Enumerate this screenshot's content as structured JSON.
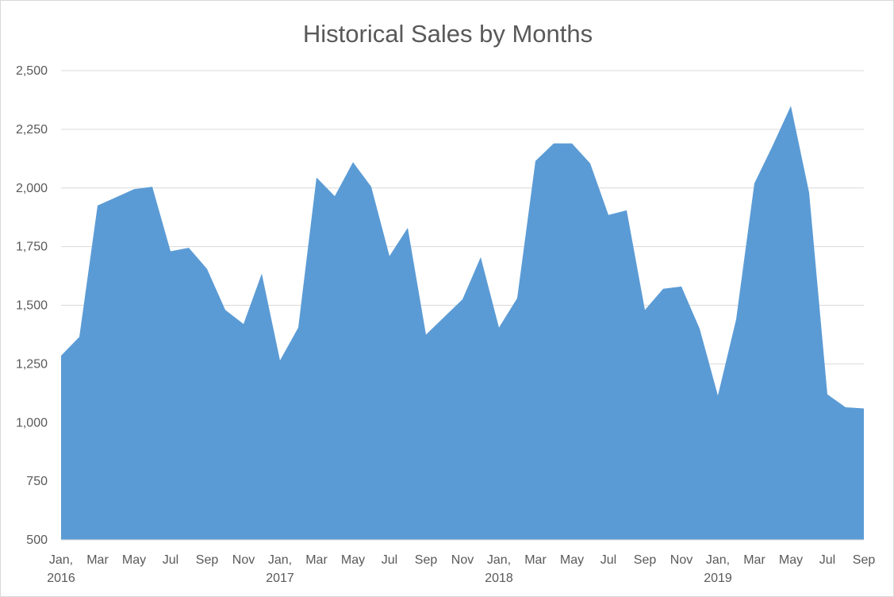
{
  "chart_data": {
    "type": "area",
    "title": "Historical Sales by Months",
    "xlabel": "",
    "ylabel": "",
    "ylim": [
      500,
      2500
    ],
    "y_ticks": [
      500,
      750,
      1000,
      1250,
      1500,
      1750,
      2000,
      2250,
      2500
    ],
    "y_tick_labels": [
      "500",
      "750",
      "1,000",
      "1,250",
      "1,500",
      "1,750",
      "2,000",
      "2,250",
      "2,500"
    ],
    "grid": true,
    "legend": "none",
    "x": [
      "2016-01",
      "2016-02",
      "2016-03",
      "2016-04",
      "2016-05",
      "2016-06",
      "2016-07",
      "2016-08",
      "2016-09",
      "2016-10",
      "2016-11",
      "2016-12",
      "2017-01",
      "2017-02",
      "2017-03",
      "2017-04",
      "2017-05",
      "2017-06",
      "2017-07",
      "2017-08",
      "2017-09",
      "2017-10",
      "2017-11",
      "2017-12",
      "2018-01",
      "2018-02",
      "2018-03",
      "2018-04",
      "2018-05",
      "2018-06",
      "2018-07",
      "2018-08",
      "2018-09",
      "2018-10",
      "2018-11",
      "2018-12",
      "2019-01",
      "2019-02",
      "2019-03",
      "2019-04",
      "2019-05",
      "2019-06",
      "2019-07",
      "2019-08",
      "2019-09"
    ],
    "x_tick_labels": [
      {
        "line1": "Jan,",
        "line2": "2016"
      },
      {
        "line1": "Mar",
        "line2": ""
      },
      {
        "line1": "May",
        "line2": ""
      },
      {
        "line1": "Jul",
        "line2": ""
      },
      {
        "line1": "Sep",
        "line2": ""
      },
      {
        "line1": "Nov",
        "line2": ""
      },
      {
        "line1": "Jan,",
        "line2": "2017"
      },
      {
        "line1": "Mar",
        "line2": ""
      },
      {
        "line1": "May",
        "line2": ""
      },
      {
        "line1": "Jul",
        "line2": ""
      },
      {
        "line1": "Sep",
        "line2": ""
      },
      {
        "line1": "Nov",
        "line2": ""
      },
      {
        "line1": "Jan,",
        "line2": "2018"
      },
      {
        "line1": "Mar",
        "line2": ""
      },
      {
        "line1": "May",
        "line2": ""
      },
      {
        "line1": "Jul",
        "line2": ""
      },
      {
        "line1": "Sep",
        "line2": ""
      },
      {
        "line1": "Nov",
        "line2": ""
      },
      {
        "line1": "Jan,",
        "line2": "2019"
      },
      {
        "line1": "Mar",
        "line2": ""
      },
      {
        "line1": "May",
        "line2": ""
      },
      {
        "line1": "Jul",
        "line2": ""
      },
      {
        "line1": "Sep",
        "line2": ""
      }
    ],
    "series": [
      {
        "values": [
          1285,
          1365,
          1925,
          1960,
          1995,
          2005,
          1730,
          1745,
          1655,
          1480,
          1420,
          1635,
          1265,
          1405,
          2045,
          1965,
          2110,
          2005,
          1710,
          1830,
          1375,
          1450,
          1525,
          1705,
          1405,
          1530,
          2115,
          2190,
          2190,
          2105,
          1885,
          1905,
          1480,
          1570,
          1580,
          1400,
          1115,
          1440,
          2020,
          2180,
          2350,
          1980,
          1120,
          1065,
          1060
        ],
        "color": "#5b9bd5"
      }
    ]
  }
}
